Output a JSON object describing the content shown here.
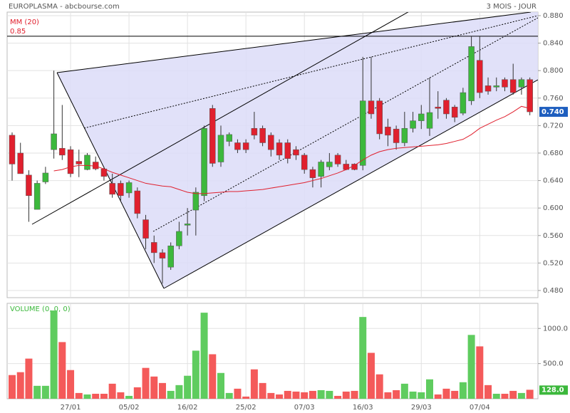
{
  "chart_data": [
    {
      "type": "candlestick",
      "title": "EUROPLASMA - abcbourse.com",
      "subtitle": "3 MOIS - JOUR",
      "up_color": "#3cb83c",
      "down_color": "#e0202e",
      "open": [
        0.706,
        0.68,
        0.648,
        0.598,
        0.638,
        0.685,
        0.687,
        0.685,
        0.668,
        0.656,
        0.667,
        0.657,
        0.636,
        0.636,
        0.622,
        0.625,
        0.583,
        0.55,
        0.535,
        0.514,
        0.545,
        0.575,
        0.597,
        0.618,
        0.745,
        0.667,
        0.697,
        0.695,
        0.695,
        0.716,
        0.716,
        0.706,
        0.695,
        0.695,
        0.685,
        0.677,
        0.656,
        0.646,
        0.66,
        0.677,
        0.664,
        0.664,
        0.662,
        0.756,
        0.756,
        0.718,
        0.715,
        0.695,
        0.716,
        0.727,
        0.716,
        0.747,
        0.757,
        0.747,
        0.738,
        0.756,
        0.815,
        0.778,
        0.776,
        0.787,
        0.787,
        0.776,
        0.787
      ],
      "high": [
        0.71,
        0.695,
        0.655,
        0.64,
        0.66,
        0.8,
        0.75,
        0.69,
        0.685,
        0.68,
        0.675,
        0.66,
        0.65,
        0.64,
        0.64,
        0.63,
        0.59,
        0.56,
        0.54,
        0.55,
        0.58,
        0.6,
        0.63,
        0.72,
        0.75,
        0.72,
        0.71,
        0.7,
        0.7,
        0.74,
        0.72,
        0.71,
        0.7,
        0.7,
        0.69,
        0.68,
        0.66,
        0.67,
        0.68,
        0.68,
        0.67,
        0.665,
        0.82,
        0.82,
        0.76,
        0.73,
        0.72,
        0.74,
        0.74,
        0.75,
        0.79,
        0.77,
        0.76,
        0.75,
        0.775,
        0.85,
        0.85,
        0.79,
        0.79,
        0.79,
        0.81,
        0.79,
        0.79
      ],
      "low": [
        0.64,
        0.65,
        0.58,
        0.598,
        0.635,
        0.672,
        0.67,
        0.645,
        0.645,
        0.655,
        0.655,
        0.64,
        0.615,
        0.61,
        0.615,
        0.585,
        0.54,
        0.52,
        0.49,
        0.51,
        0.54,
        0.56,
        0.56,
        0.61,
        0.66,
        0.66,
        0.69,
        0.68,
        0.68,
        0.7,
        0.69,
        0.675,
        0.67,
        0.665,
        0.67,
        0.65,
        0.63,
        0.63,
        0.655,
        0.66,
        0.655,
        0.655,
        0.655,
        0.73,
        0.7,
        0.69,
        0.685,
        0.69,
        0.71,
        0.715,
        0.705,
        0.73,
        0.73,
        0.725,
        0.735,
        0.75,
        0.76,
        0.765,
        0.77,
        0.77,
        0.765,
        0.765,
        0.735
      ],
      "close": [
        0.664,
        0.65,
        0.618,
        0.636,
        0.651,
        0.708,
        0.677,
        0.65,
        0.664,
        0.677,
        0.657,
        0.646,
        0.62,
        0.618,
        0.637,
        0.592,
        0.556,
        0.535,
        0.527,
        0.545,
        0.566,
        0.577,
        0.623,
        0.716,
        0.665,
        0.706,
        0.707,
        0.685,
        0.685,
        0.706,
        0.695,
        0.685,
        0.677,
        0.672,
        0.677,
        0.656,
        0.644,
        0.667,
        0.667,
        0.664,
        0.656,
        0.656,
        0.756,
        0.737,
        0.708,
        0.706,
        0.695,
        0.716,
        0.727,
        0.737,
        0.739,
        0.745,
        0.737,
        0.732,
        0.768,
        0.835,
        0.768,
        0.77,
        0.778,
        0.776,
        0.768,
        0.787,
        0.74
      ],
      "last_label": "0.740",
      "ma": {
        "name": "MM (20)",
        "color": "#e0202e",
        "values": [
          null,
          null,
          null,
          null,
          null,
          0.654,
          0.656,
          0.66,
          0.662,
          0.662,
          0.661,
          0.657,
          0.652,
          0.648,
          0.644,
          0.64,
          0.636,
          0.634,
          0.632,
          0.631,
          0.627,
          0.623,
          0.621,
          0.621,
          0.622,
          0.623,
          0.624,
          0.624,
          0.625,
          0.626,
          0.627,
          0.629,
          0.631,
          0.633,
          0.635,
          0.637,
          0.64,
          0.643,
          0.647,
          0.651,
          0.656,
          0.662,
          0.67,
          0.677,
          0.682,
          0.685,
          0.687,
          0.688,
          0.689,
          0.69,
          0.691,
          0.692,
          0.694,
          0.697,
          0.7,
          0.707,
          0.716,
          0.722,
          0.728,
          0.733,
          0.74,
          0.748,
          0.745
        ]
      },
      "reference_line": 0.85,
      "ylim": [
        0.4696,
        0.8924
      ],
      "yticks": [
        {
          "value": 0.88,
          "label": "0.880"
        },
        {
          "value": 0.84,
          "label": "0.840"
        },
        {
          "value": 0.8,
          "label": "0.800"
        },
        {
          "value": 0.76,
          "label": "0.760"
        },
        {
          "value": 0.72,
          "label": "0.720"
        },
        {
          "value": 0.68,
          "label": "0.680"
        },
        {
          "value": 0.64,
          "label": "0.640"
        },
        {
          "value": 0.6,
          "label": "0.600"
        },
        {
          "value": 0.56,
          "label": "0.560"
        },
        {
          "value": 0.52,
          "label": "0.520"
        },
        {
          "value": 0.48,
          "label": "0.480"
        }
      ],
      "grid": true
    },
    {
      "type": "bar",
      "title": "VOLUME (0, 0, 0)",
      "categories": [
        null,
        null,
        null,
        null,
        null,
        null,
        null,
        "27/01",
        null,
        null,
        null,
        null,
        null,
        null,
        "05/02",
        null,
        null,
        null,
        null,
        null,
        null,
        "16/02",
        null,
        null,
        null,
        null,
        null,
        null,
        "25/02",
        null,
        null,
        null,
        null,
        null,
        null,
        "07/03",
        null,
        null,
        null,
        null,
        null,
        null,
        "16/03",
        null,
        null,
        null,
        null,
        null,
        null,
        "29/03",
        null,
        null,
        null,
        null,
        null,
        null,
        "07/04",
        null,
        null,
        null,
        null,
        null,
        null
      ],
      "values": [
        337,
        378,
        571,
        184,
        184,
        1255,
        806,
        408,
        82,
        61,
        71,
        71,
        214,
        92,
        41,
        163,
        439,
        316,
        224,
        112,
        194,
        327,
        684,
        1224,
        633,
        367,
        82,
        143,
        31,
        418,
        224,
        82,
        61,
        112,
        102,
        92,
        112,
        122,
        112,
        41,
        102,
        112,
        1163,
        653,
        347,
        92,
        122,
        214,
        102,
        92,
        276,
        61,
        143,
        112,
        235,
        908,
        745,
        194,
        71,
        71,
        112,
        82,
        128
      ],
      "last_label": "128.0",
      "up_color": "#5fcc5f",
      "down_color": "#f45a5a",
      "ylim": [
        0,
        1357
      ],
      "yticks": [
        {
          "value": 1000,
          "label": "1000.0"
        },
        {
          "value": 500,
          "label": "500.0"
        }
      ],
      "grid": true
    }
  ]
}
